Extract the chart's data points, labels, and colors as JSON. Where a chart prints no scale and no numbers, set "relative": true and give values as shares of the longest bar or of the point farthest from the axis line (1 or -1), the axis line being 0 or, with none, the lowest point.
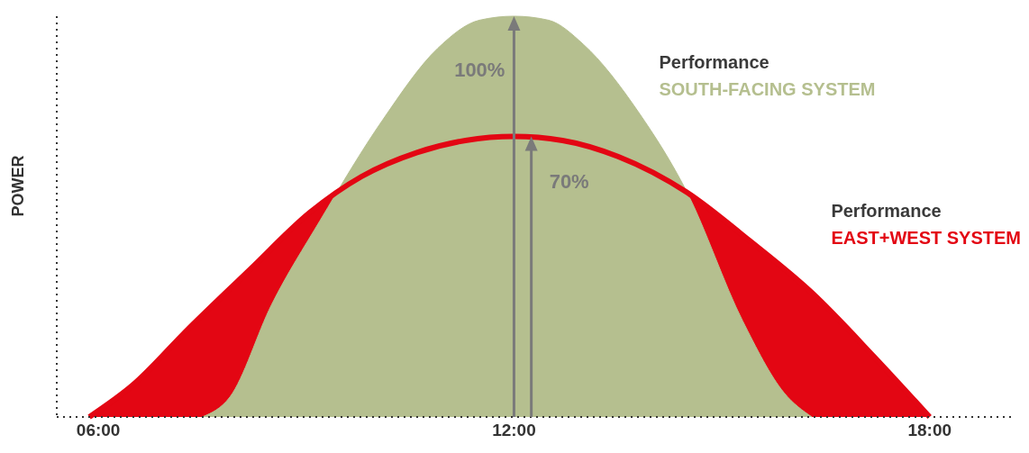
{
  "chart_data": {
    "type": "area",
    "relative": true,
    "ylabel": "POWER",
    "xlim": [
      5.4,
      19.2
    ],
    "xticks": [
      {
        "value": 6,
        "label": "06:00"
      },
      {
        "value": 12,
        "label": "12:00"
      },
      {
        "value": 18,
        "label": "18:00"
      }
    ],
    "annotations": [
      {
        "text": "100%",
        "x": 12,
        "y": 1
      },
      {
        "text": "70%",
        "x": 12.25,
        "y": 0.7
      }
    ],
    "series": [
      {
        "name": "Performance\nEAST+WEST SYSTEM",
        "color": "#e30613",
        "x": [
          5.87,
          6.5,
          7.3,
          8.2,
          9.05,
          9.8,
          10.6,
          11.3,
          12.0,
          12.7,
          13.5,
          14.5,
          15.4,
          16.3,
          17.2,
          18.0
        ],
        "values": [
          0,
          0.08,
          0.22,
          0.37,
          0.51,
          0.6,
          0.66,
          0.69,
          0.7,
          0.69,
          0.65,
          0.56,
          0.44,
          0.31,
          0.15,
          0
        ]
      },
      {
        "name": "Performance\nSOUTH-FACING SYSTEM",
        "color": "#b5bf8f",
        "x": [
          7.5,
          7.9,
          8.5,
          9.2,
          10.1,
          10.9,
          11.5,
          12.0,
          12.5,
          13.0,
          13.8,
          14.5,
          15.3,
          15.9,
          16.3
        ],
        "values": [
          0,
          0.05,
          0.28,
          0.49,
          0.74,
          0.92,
          0.99,
          1,
          0.99,
          0.93,
          0.76,
          0.56,
          0.24,
          0.06,
          0
        ]
      }
    ]
  }
}
